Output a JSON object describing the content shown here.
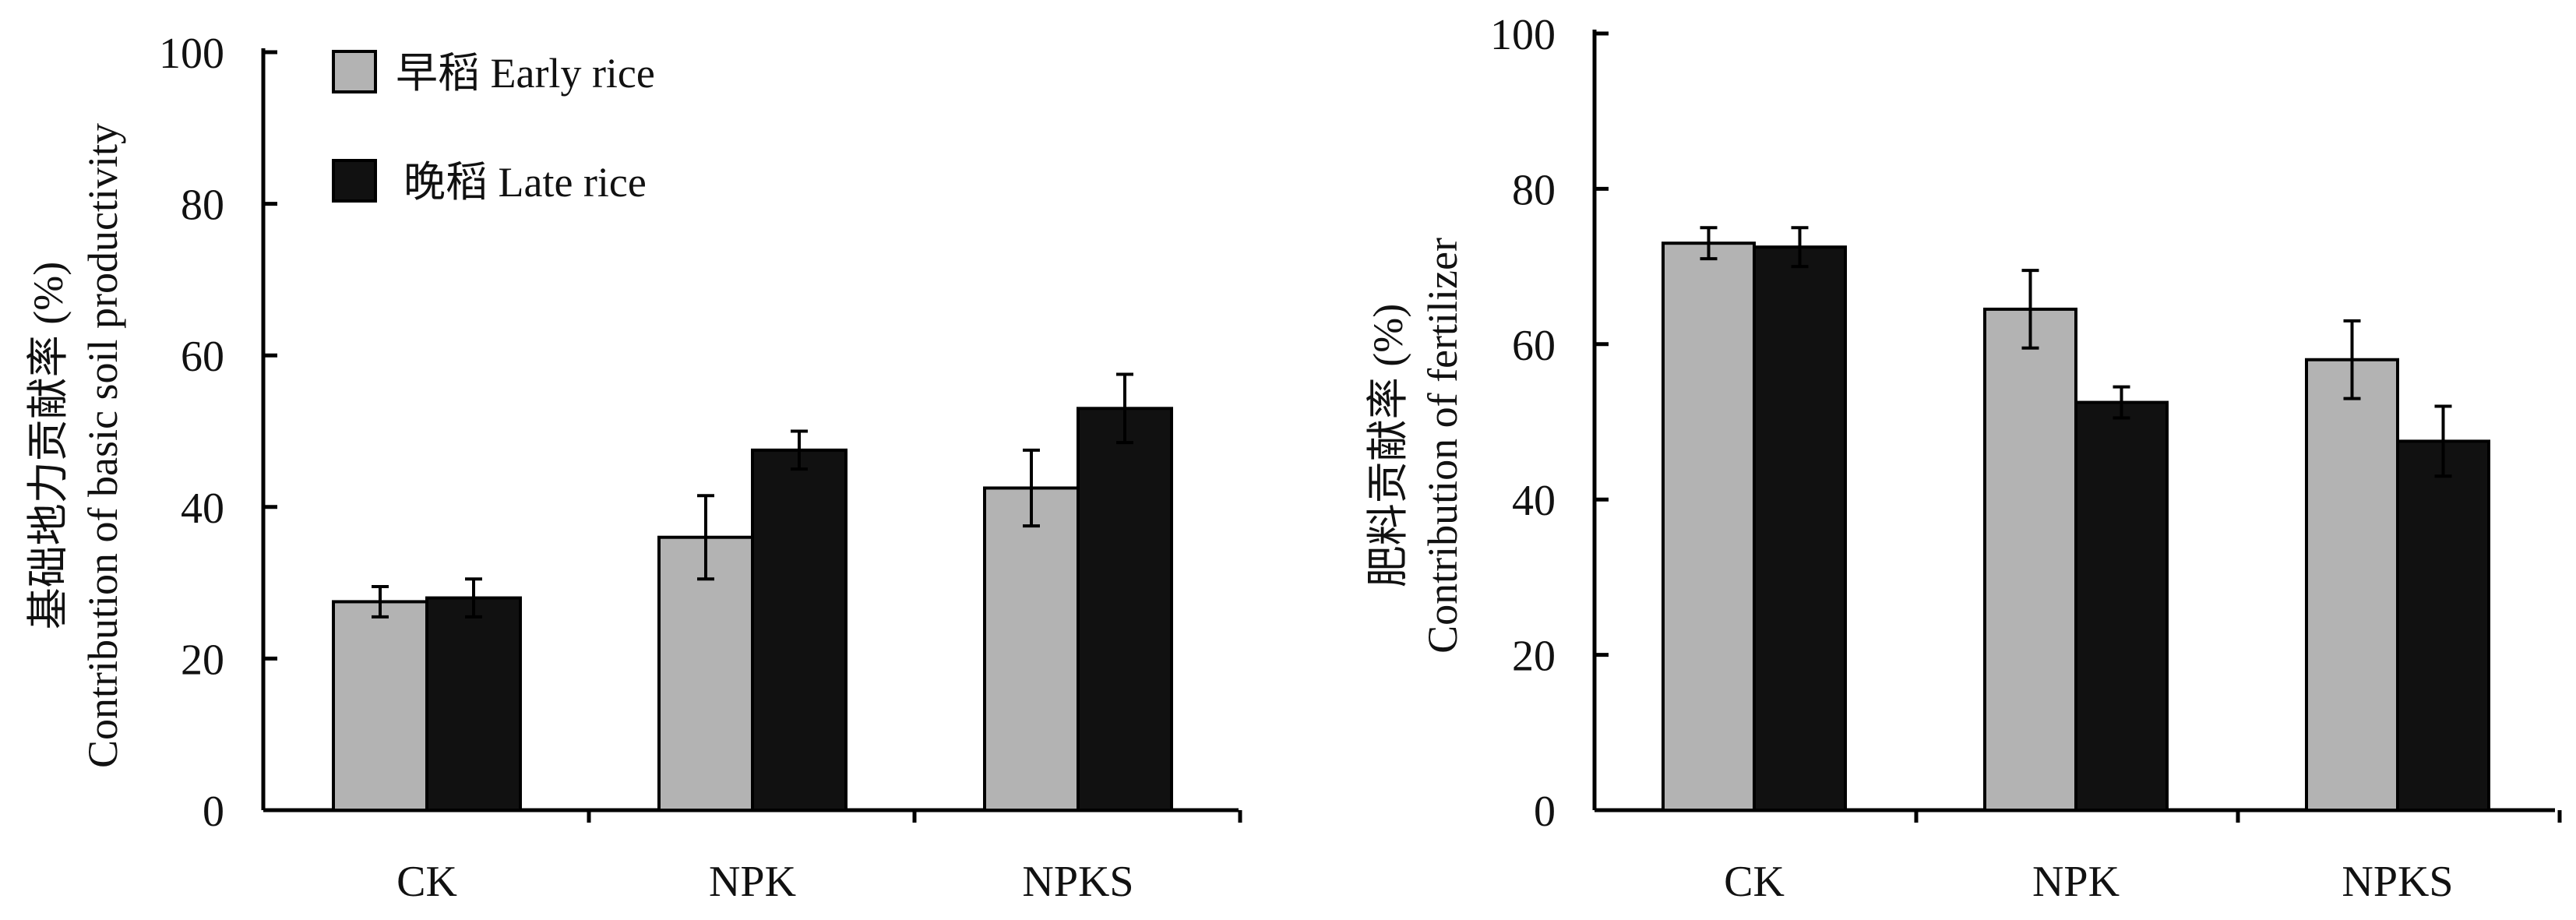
{
  "legend": {
    "early": "早稻 Early rice",
    "late": "晚稻 Late  rice"
  },
  "colors": {
    "early": "#b3b3b3",
    "late": "#111111",
    "axis": "#000000"
  },
  "chart_data": [
    {
      "type": "bar",
      "title": "",
      "xlabel": "",
      "ylabel_zh": "基础地力贡献率 (%)",
      "ylabel_en": "Contribution of basic soil productivity",
      "ylim": [
        0,
        100
      ],
      "yticks": [
        0,
        20,
        40,
        60,
        80,
        100
      ],
      "categories": [
        "CK",
        "NPK",
        "NPKS"
      ],
      "legend_position": "top-left",
      "series": [
        {
          "name": "早稻 Early rice",
          "values": [
            27.5,
            36,
            42.5
          ],
          "errors": [
            2,
            5.5,
            5
          ]
        },
        {
          "name": "晚稻 Late  rice",
          "values": [
            28,
            47.5,
            53
          ],
          "errors": [
            2.5,
            2.5,
            4.5
          ]
        }
      ]
    },
    {
      "type": "bar",
      "title": "",
      "xlabel": "",
      "ylabel_zh": "肥料贡献率 (%)",
      "ylabel_en": "Contribution of fertilizer",
      "ylim": [
        0,
        100
      ],
      "yticks": [
        0,
        20,
        40,
        60,
        80,
        100
      ],
      "categories": [
        "CK",
        "NPK",
        "NPKS"
      ],
      "series": [
        {
          "name": "早稻 Early rice",
          "values": [
            73,
            64.5,
            58
          ],
          "errors": [
            2,
            5,
            5
          ]
        },
        {
          "name": "晚稻 Late  rice",
          "values": [
            72.5,
            52.5,
            47.5
          ],
          "errors": [
            2.5,
            2,
            4.5
          ]
        }
      ]
    }
  ]
}
